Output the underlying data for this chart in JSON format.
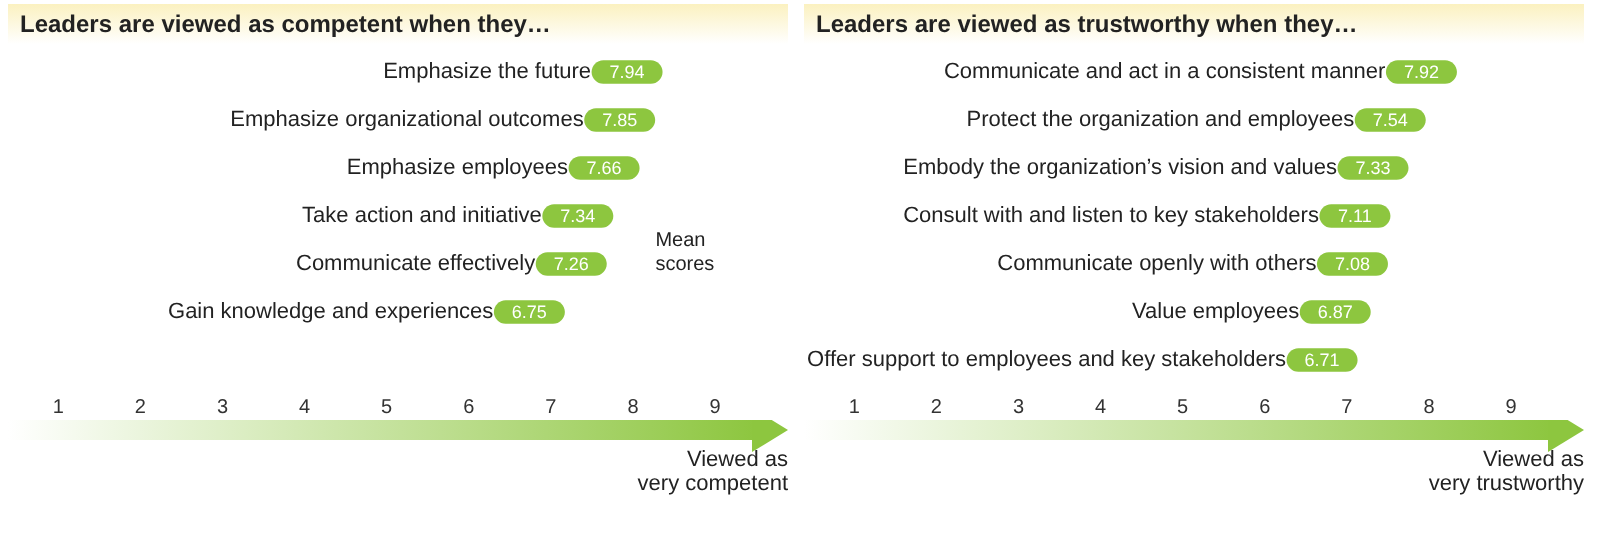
{
  "chart_data": [
    {
      "type": "scatter",
      "title": "Leaders are viewed as competent when they…",
      "categories": [
        "Emphasize the future",
        "Emphasize organizational outcomes",
        "Emphasize employees",
        "Take action and initiative",
        "Communicate effectively",
        "Gain knowledge and experiences"
      ],
      "values": [
        7.94,
        7.85,
        7.66,
        7.34,
        7.26,
        6.75
      ],
      "orientation": "horizontal",
      "color": "#8dc63f",
      "data_labels": true,
      "xlim": [
        0.4,
        9.9
      ],
      "xticks": [
        1,
        2,
        3,
        4,
        5,
        6,
        7,
        8,
        9
      ],
      "annotations": [
        "Mean scores",
        "Viewed as very competent"
      ]
    },
    {
      "type": "scatter",
      "title": "Leaders are viewed as trustworthy when they…",
      "categories": [
        "Communicate and act in a consistent manner",
        "Protect the organization and employees",
        "Embody the organization’s vision and values",
        "Consult with and listen to key stakeholders",
        "Communicate openly with others",
        "Value employees",
        "Offer support to employees and key stakeholders"
      ],
      "values": [
        7.92,
        7.54,
        7.33,
        7.11,
        7.08,
        6.87,
        6.71
      ],
      "orientation": "horizontal",
      "color": "#8dc63f",
      "data_labels": true,
      "xlim": [
        0.4,
        9.9
      ],
      "xticks": [
        1,
        2,
        3,
        4,
        5,
        6,
        7,
        8,
        9
      ],
      "annotations": [
        "Viewed as very trustworthy"
      ]
    }
  ]
}
